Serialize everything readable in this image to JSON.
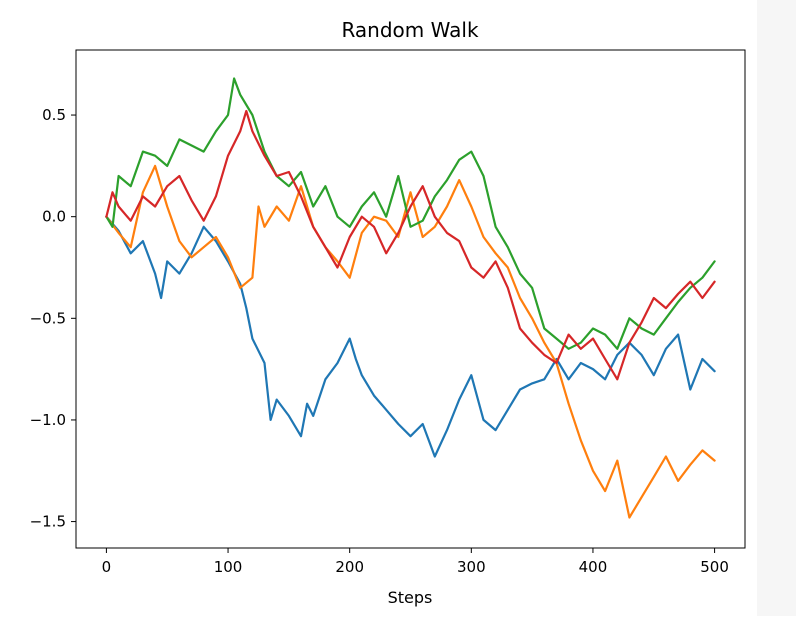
{
  "chart_data": {
    "type": "line",
    "title": "Random Walk",
    "xlabel": "Steps",
    "ylabel": "",
    "xlim": [
      -25,
      525
    ],
    "ylim": [
      -1.63,
      0.82
    ],
    "grid": false,
    "xticks": [
      0,
      100,
      200,
      300,
      400,
      500
    ],
    "xtick_labels": [
      "0",
      "100",
      "200",
      "300",
      "400",
      "500"
    ],
    "yticks": [
      0.5,
      0.0,
      -0.5,
      -1.0,
      -1.5
    ],
    "ytick_labels": [
      "0.5",
      "0.0",
      "−0.5",
      "−1.0",
      "−1.5"
    ],
    "series": [
      {
        "color": "#1f77b4",
        "x": [
          0,
          10,
          20,
          30,
          40,
          45,
          50,
          60,
          70,
          80,
          90,
          100,
          110,
          115,
          120,
          130,
          135,
          140,
          150,
          160,
          165,
          170,
          180,
          190,
          200,
          205,
          210,
          220,
          230,
          240,
          250,
          260,
          270,
          280,
          290,
          300,
          310,
          320,
          330,
          340,
          350,
          360,
          370,
          380,
          390,
          400,
          410,
          420,
          430,
          440,
          450,
          460,
          470,
          480,
          490,
          500
        ],
        "values": [
          0.0,
          -0.07,
          -0.18,
          -0.12,
          -0.28,
          -0.4,
          -0.22,
          -0.28,
          -0.18,
          -0.05,
          -0.12,
          -0.22,
          -0.33,
          -0.45,
          -0.6,
          -0.72,
          -1.0,
          -0.9,
          -0.98,
          -1.08,
          -0.92,
          -0.98,
          -0.8,
          -0.72,
          -0.6,
          -0.7,
          -0.78,
          -0.88,
          -0.95,
          -1.02,
          -1.08,
          -1.02,
          -1.18,
          -1.05,
          -0.9,
          -0.78,
          -1.0,
          -1.05,
          -0.95,
          -0.85,
          -0.82,
          -0.8,
          -0.7,
          -0.8,
          -0.72,
          -0.75,
          -0.8,
          -0.68,
          -0.62,
          -0.68,
          -0.78,
          -0.65,
          -0.58,
          -0.85,
          -0.7,
          -0.76
        ]
      },
      {
        "color": "#ff7f0e",
        "x": [
          0,
          10,
          20,
          30,
          40,
          50,
          60,
          70,
          80,
          90,
          100,
          110,
          120,
          125,
          130,
          140,
          150,
          160,
          170,
          180,
          190,
          200,
          210,
          220,
          230,
          240,
          250,
          260,
          270,
          280,
          290,
          300,
          310,
          320,
          330,
          340,
          350,
          360,
          370,
          380,
          390,
          400,
          410,
          420,
          430,
          440,
          450,
          460,
          470,
          480,
          490,
          500
        ],
        "values": [
          0.0,
          -0.08,
          -0.15,
          0.12,
          0.25,
          0.05,
          -0.12,
          -0.2,
          -0.15,
          -0.1,
          -0.2,
          -0.35,
          -0.3,
          0.05,
          -0.05,
          0.05,
          -0.02,
          0.15,
          -0.05,
          -0.15,
          -0.22,
          -0.3,
          -0.08,
          0.0,
          -0.02,
          -0.1,
          0.12,
          -0.1,
          -0.05,
          0.05,
          0.18,
          0.05,
          -0.1,
          -0.18,
          -0.25,
          -0.4,
          -0.5,
          -0.62,
          -0.72,
          -0.92,
          -1.1,
          -1.25,
          -1.35,
          -1.2,
          -1.48,
          -1.38,
          -1.28,
          -1.18,
          -1.3,
          -1.22,
          -1.15,
          -1.2
        ]
      },
      {
        "color": "#2ca02c",
        "x": [
          0,
          5,
          10,
          20,
          30,
          40,
          50,
          60,
          70,
          80,
          90,
          100,
          105,
          110,
          120,
          130,
          140,
          150,
          160,
          170,
          180,
          190,
          200,
          210,
          220,
          230,
          240,
          250,
          260,
          270,
          280,
          290,
          300,
          310,
          320,
          330,
          340,
          350,
          360,
          370,
          380,
          390,
          400,
          410,
          420,
          430,
          440,
          450,
          460,
          470,
          480,
          490,
          500
        ],
        "values": [
          0.0,
          -0.05,
          0.2,
          0.15,
          0.32,
          0.3,
          0.25,
          0.38,
          0.35,
          0.32,
          0.42,
          0.5,
          0.68,
          0.6,
          0.5,
          0.32,
          0.2,
          0.15,
          0.22,
          0.05,
          0.15,
          0.0,
          -0.05,
          0.05,
          0.12,
          0.0,
          0.2,
          -0.05,
          -0.02,
          0.1,
          0.18,
          0.28,
          0.32,
          0.2,
          -0.05,
          -0.15,
          -0.28,
          -0.35,
          -0.55,
          -0.6,
          -0.65,
          -0.62,
          -0.55,
          -0.58,
          -0.65,
          -0.5,
          -0.55,
          -0.58,
          -0.5,
          -0.42,
          -0.35,
          -0.3,
          -0.22
        ]
      },
      {
        "color": "#d62728",
        "x": [
          0,
          5,
          10,
          20,
          30,
          40,
          50,
          60,
          70,
          80,
          90,
          100,
          110,
          115,
          120,
          130,
          140,
          150,
          160,
          170,
          180,
          190,
          200,
          210,
          220,
          230,
          240,
          250,
          260,
          270,
          280,
          290,
          300,
          310,
          320,
          330,
          340,
          350,
          360,
          370,
          380,
          390,
          400,
          410,
          420,
          430,
          440,
          450,
          460,
          470,
          480,
          490,
          500
        ],
        "values": [
          0.0,
          0.12,
          0.05,
          -0.02,
          0.1,
          0.05,
          0.15,
          0.2,
          0.08,
          -0.02,
          0.1,
          0.3,
          0.42,
          0.52,
          0.42,
          0.3,
          0.2,
          0.22,
          0.1,
          -0.05,
          -0.15,
          -0.25,
          -0.1,
          0.0,
          -0.05,
          -0.18,
          -0.08,
          0.05,
          0.15,
          0.0,
          -0.08,
          -0.12,
          -0.25,
          -0.3,
          -0.22,
          -0.35,
          -0.55,
          -0.62,
          -0.68,
          -0.72,
          -0.58,
          -0.65,
          -0.6,
          -0.7,
          -0.8,
          -0.62,
          -0.52,
          -0.4,
          -0.45,
          -0.38,
          -0.32,
          -0.4,
          -0.32
        ]
      }
    ]
  }
}
